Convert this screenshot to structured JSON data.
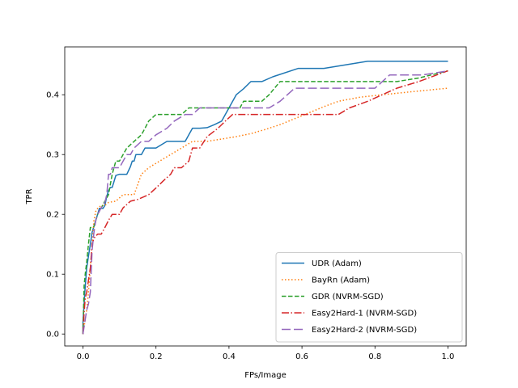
{
  "chart_data": {
    "type": "line",
    "title": "",
    "xlabel": "FPs/Image",
    "ylabel": "TPR",
    "xlim": [
      -0.05,
      1.05
    ],
    "ylim": [
      -0.02,
      0.48
    ],
    "xticks": [
      0.0,
      0.2,
      0.4,
      0.6,
      0.8,
      1.0
    ],
    "xtick_labels": [
      "0.0",
      "0.2",
      "0.4",
      "0.6",
      "0.8",
      "1.0"
    ],
    "yticks": [
      0.0,
      0.1,
      0.2,
      0.3,
      0.4
    ],
    "ytick_labels": [
      "0.0",
      "0.1",
      "0.2",
      "0.3",
      "0.4"
    ],
    "grid": false,
    "legend_location": "lower-right",
    "series": [
      {
        "name": "UDR (Adam)",
        "color": "#1f77b4",
        "dash": "solid",
        "x": [
          0.0,
          0.0,
          0.005,
          0.01,
          0.015,
          0.02,
          0.025,
          0.03,
          0.035,
          0.04,
          0.045,
          0.05,
          0.055,
          0.06,
          0.065,
          0.07,
          0.075,
          0.08,
          0.085,
          0.09,
          0.1,
          0.11,
          0.12,
          0.13,
          0.135,
          0.14,
          0.145,
          0.16,
          0.17,
          0.19,
          0.2,
          0.23,
          0.25,
          0.28,
          0.29,
          0.3,
          0.32,
          0.34,
          0.36,
          0.38,
          0.4,
          0.42,
          0.44,
          0.46,
          0.49,
          0.52,
          0.59,
          0.66,
          0.78,
          0.86,
          1.0
        ],
        "y": [
          0.0,
          0.02,
          0.07,
          0.11,
          0.13,
          0.15,
          0.17,
          0.18,
          0.19,
          0.2,
          0.21,
          0.21,
          0.21,
          0.215,
          0.23,
          0.24,
          0.245,
          0.245,
          0.255,
          0.265,
          0.267,
          0.267,
          0.267,
          0.28,
          0.289,
          0.289,
          0.3,
          0.3,
          0.311,
          0.311,
          0.311,
          0.322,
          0.322,
          0.322,
          0.333,
          0.344,
          0.344,
          0.345,
          0.35,
          0.356,
          0.378,
          0.4,
          0.41,
          0.422,
          0.422,
          0.43,
          0.444,
          0.444,
          0.456,
          0.456,
          0.456
        ]
      },
      {
        "name": "BayRn (Adam)",
        "color": "#ff7f0e",
        "dash": "dotted",
        "x": [
          0.0,
          0.005,
          0.01,
          0.015,
          0.02,
          0.025,
          0.03,
          0.035,
          0.04,
          0.05,
          0.06,
          0.07,
          0.09,
          0.11,
          0.14,
          0.16,
          0.18,
          0.21,
          0.24,
          0.27,
          0.3,
          0.34,
          0.38,
          0.42,
          0.46,
          0.5,
          0.54,
          0.58,
          0.62,
          0.66,
          0.7,
          0.76,
          0.82,
          0.9,
          1.0
        ],
        "y": [
          0.0,
          0.02,
          0.04,
          0.07,
          0.11,
          0.15,
          0.19,
          0.205,
          0.21,
          0.215,
          0.215,
          0.22,
          0.222,
          0.233,
          0.233,
          0.267,
          0.278,
          0.289,
          0.3,
          0.311,
          0.322,
          0.322,
          0.326,
          0.33,
          0.335,
          0.342,
          0.35,
          0.36,
          0.37,
          0.38,
          0.389,
          0.396,
          0.4,
          0.405,
          0.411
        ]
      },
      {
        "name": "GDR (NVRM-SGD)",
        "color": "#2ca02c",
        "dash": "dashed",
        "x": [
          0.0,
          0.003,
          0.006,
          0.01,
          0.015,
          0.02,
          0.025,
          0.03,
          0.04,
          0.05,
          0.06,
          0.07,
          0.08,
          0.09,
          0.1,
          0.11,
          0.12,
          0.14,
          0.16,
          0.17,
          0.18,
          0.2,
          0.22,
          0.27,
          0.29,
          0.3,
          0.43,
          0.44,
          0.47,
          0.49,
          0.51,
          0.54,
          0.6,
          0.86,
          0.92,
          1.0
        ],
        "y": [
          0.0,
          0.08,
          0.1,
          0.12,
          0.15,
          0.178,
          0.178,
          0.18,
          0.2,
          0.211,
          0.222,
          0.233,
          0.267,
          0.289,
          0.289,
          0.3,
          0.311,
          0.322,
          0.333,
          0.344,
          0.356,
          0.367,
          0.367,
          0.367,
          0.378,
          0.378,
          0.378,
          0.389,
          0.389,
          0.389,
          0.4,
          0.422,
          0.422,
          0.422,
          0.428,
          0.44
        ]
      },
      {
        "name": "Easy2Hard-1 (NVRM-SGD)",
        "color": "#d62728",
        "dash": "dashdot",
        "x": [
          0.0,
          0.003,
          0.006,
          0.01,
          0.015,
          0.02,
          0.025,
          0.03,
          0.04,
          0.05,
          0.06,
          0.07,
          0.08,
          0.1,
          0.11,
          0.13,
          0.15,
          0.18,
          0.2,
          0.22,
          0.24,
          0.25,
          0.27,
          0.29,
          0.3,
          0.32,
          0.34,
          0.37,
          0.39,
          0.41,
          0.43,
          0.56,
          0.7,
          0.73,
          0.78,
          0.86,
          0.92,
          1.0
        ],
        "y": [
          0.0,
          0.035,
          0.06,
          0.07,
          0.09,
          0.11,
          0.15,
          0.16,
          0.167,
          0.167,
          0.178,
          0.19,
          0.2,
          0.2,
          0.211,
          0.222,
          0.225,
          0.233,
          0.244,
          0.256,
          0.267,
          0.278,
          0.278,
          0.289,
          0.311,
          0.311,
          0.33,
          0.344,
          0.356,
          0.367,
          0.367,
          0.367,
          0.367,
          0.378,
          0.389,
          0.411,
          0.422,
          0.44
        ]
      },
      {
        "name": "Easy2Hard-2 (NVRM-SGD)",
        "color": "#9467bd",
        "dash": "longdash",
        "x": [
          0.0,
          0.005,
          0.01,
          0.015,
          0.02,
          0.025,
          0.03,
          0.035,
          0.04,
          0.05,
          0.06,
          0.065,
          0.07,
          0.075,
          0.08,
          0.09,
          0.1,
          0.11,
          0.12,
          0.13,
          0.14,
          0.16,
          0.18,
          0.2,
          0.23,
          0.25,
          0.28,
          0.3,
          0.32,
          0.34,
          0.38,
          0.51,
          0.54,
          0.58,
          0.66,
          0.8,
          0.84,
          0.93,
          1.0
        ],
        "y": [
          0.0,
          0.02,
          0.04,
          0.05,
          0.07,
          0.14,
          0.17,
          0.19,
          0.2,
          0.211,
          0.22,
          0.233,
          0.267,
          0.267,
          0.278,
          0.278,
          0.278,
          0.289,
          0.3,
          0.3,
          0.311,
          0.322,
          0.322,
          0.333,
          0.344,
          0.356,
          0.367,
          0.367,
          0.378,
          0.378,
          0.378,
          0.378,
          0.389,
          0.411,
          0.411,
          0.411,
          0.433,
          0.433,
          0.44
        ]
      }
    ]
  }
}
